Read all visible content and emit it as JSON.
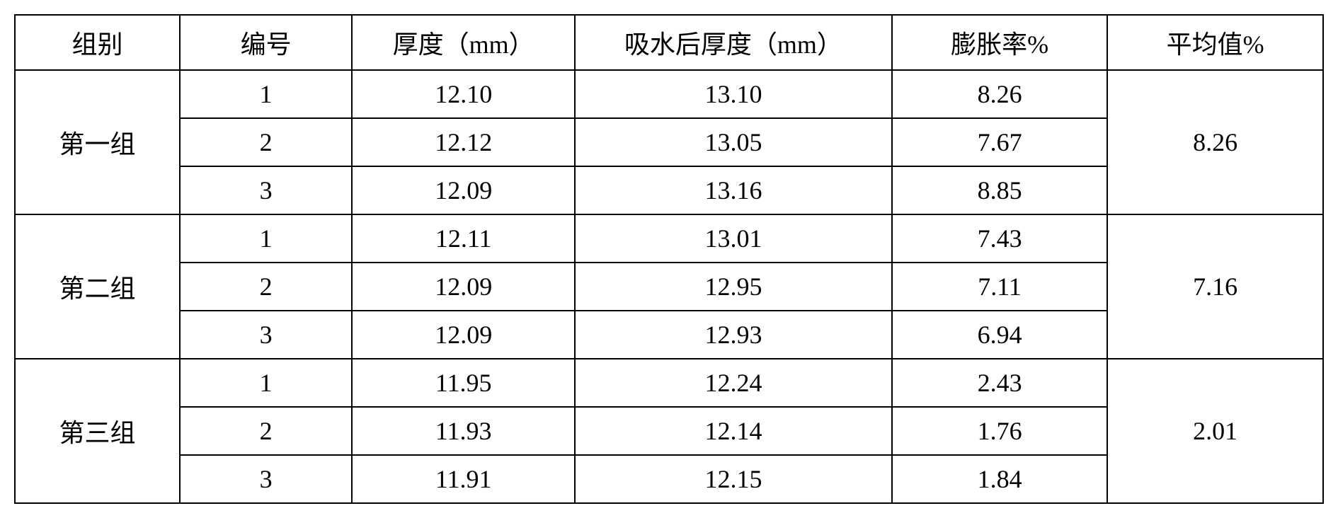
{
  "type": "table",
  "headers": {
    "group": "组别",
    "number": "编号",
    "thickness": "厚度（mm）",
    "thicknessAfter": "吸水后厚度（mm）",
    "expansion": "膨胀率%",
    "average": "平均值%"
  },
  "groups": [
    {
      "name": "第一组",
      "average": "8.26",
      "rows": [
        {
          "num": "1",
          "thickness": "12.10",
          "after": "13.10",
          "expansion": "8.26"
        },
        {
          "num": "2",
          "thickness": "12.12",
          "after": "13.05",
          "expansion": "7.67"
        },
        {
          "num": "3",
          "thickness": "12.09",
          "after": "13.16",
          "expansion": "8.85"
        }
      ]
    },
    {
      "name": "第二组",
      "average": "7.16",
      "rows": [
        {
          "num": "1",
          "thickness": "12.11",
          "after": "13.01",
          "expansion": "7.43"
        },
        {
          "num": "2",
          "thickness": "12.09",
          "after": "12.95",
          "expansion": "7.11"
        },
        {
          "num": "3",
          "thickness": "12.09",
          "after": "12.93",
          "expansion": "6.94"
        }
      ]
    },
    {
      "name": "第三组",
      "average": "2.01",
      "rows": [
        {
          "num": "1",
          "thickness": "11.95",
          "after": "12.24",
          "expansion": "2.43"
        },
        {
          "num": "2",
          "thickness": "11.93",
          "after": "12.14",
          "expansion": "1.76"
        },
        {
          "num": "3",
          "thickness": "11.91",
          "after": "12.15",
          "expansion": "1.84"
        }
      ]
    }
  ],
  "styling": {
    "font_family": "SimSun",
    "font_size": 36,
    "border_color": "#000000",
    "border_width": 2,
    "background_color": "#ffffff",
    "text_color": "#000000",
    "cell_padding": 12,
    "column_widths": {
      "group": 210,
      "number": 220,
      "thickness": 290,
      "after": 420,
      "expansion": 280,
      "average": 280
    }
  }
}
